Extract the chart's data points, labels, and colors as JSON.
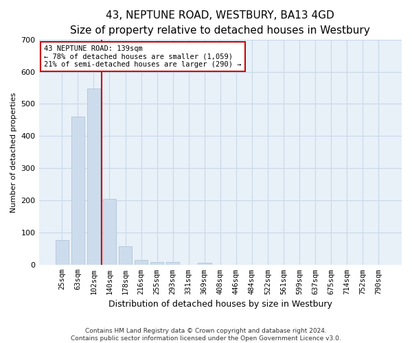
{
  "title": "43, NEPTUNE ROAD, WESTBURY, BA13 4GD",
  "subtitle": "Size of property relative to detached houses in Westbury",
  "xlabel": "Distribution of detached houses by size in Westbury",
  "ylabel": "Number of detached properties",
  "bar_labels": [
    "25sqm",
    "63sqm",
    "102sqm",
    "140sqm",
    "178sqm",
    "216sqm",
    "255sqm",
    "293sqm",
    "331sqm",
    "369sqm",
    "408sqm",
    "446sqm",
    "484sqm",
    "522sqm",
    "561sqm",
    "599sqm",
    "637sqm",
    "675sqm",
    "714sqm",
    "752sqm",
    "790sqm"
  ],
  "bar_values": [
    78,
    460,
    548,
    204,
    58,
    15,
    9,
    9,
    0,
    8,
    0,
    0,
    0,
    0,
    0,
    0,
    0,
    0,
    0,
    0,
    0
  ],
  "bar_color": "#cddcec",
  "bar_edge_color": "#b0c4d8",
  "annotation_text": "43 NEPTUNE ROAD: 139sqm\n← 78% of detached houses are smaller (1,059)\n21% of semi-detached houses are larger (290) →",
  "annotation_box_color": "#ffffff",
  "annotation_border_color": "#cc0000",
  "ylim": [
    0,
    700
  ],
  "yticks": [
    0,
    100,
    200,
    300,
    400,
    500,
    600,
    700
  ],
  "footer_line1": "Contains HM Land Registry data © Crown copyright and database right 2024.",
  "footer_line2": "Contains public sector information licensed under the Open Government Licence v3.0.",
  "bg_color": "#ffffff",
  "plot_bg_color": "#e8f0f8",
  "grid_color": "#c8d8e8",
  "red_line_color": "#cc0000",
  "title_fontsize": 11,
  "subtitle_fontsize": 9,
  "ylabel_fontsize": 8,
  "xlabel_fontsize": 9,
  "tick_fontsize": 7.5,
  "footer_fontsize": 6.5
}
